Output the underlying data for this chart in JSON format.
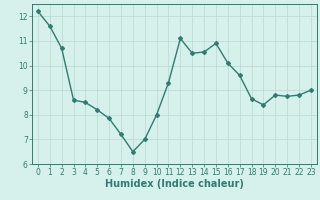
{
  "x": [
    0,
    1,
    2,
    3,
    4,
    5,
    6,
    7,
    8,
    9,
    10,
    11,
    12,
    13,
    14,
    15,
    16,
    17,
    18,
    19,
    20,
    21,
    22,
    23
  ],
  "y": [
    12.2,
    11.6,
    10.7,
    8.6,
    8.5,
    8.2,
    7.85,
    7.2,
    6.5,
    7.0,
    8.0,
    9.3,
    11.1,
    10.5,
    10.55,
    10.9,
    10.1,
    9.6,
    8.65,
    8.4,
    8.8,
    8.75,
    8.8,
    9.0
  ],
  "line_color": "#2e7d72",
  "marker": "D",
  "marker_size": 2,
  "linewidth": 1.0,
  "bg_color": "#d6f0eb",
  "grid_color": "#b8d8d2",
  "xlabel": "Humidex (Indice chaleur)",
  "xlim": [
    -0.5,
    23.5
  ],
  "ylim": [
    6,
    12.5
  ],
  "yticks": [
    6,
    7,
    8,
    9,
    10,
    11,
    12
  ],
  "xticks": [
    0,
    1,
    2,
    3,
    4,
    5,
    6,
    7,
    8,
    9,
    10,
    11,
    12,
    13,
    14,
    15,
    16,
    17,
    18,
    19,
    20,
    21,
    22,
    23
  ],
  "tick_color": "#2e7d72",
  "label_color": "#2e7d72",
  "xlabel_fontsize": 7,
  "tick_fontsize": 5.5
}
